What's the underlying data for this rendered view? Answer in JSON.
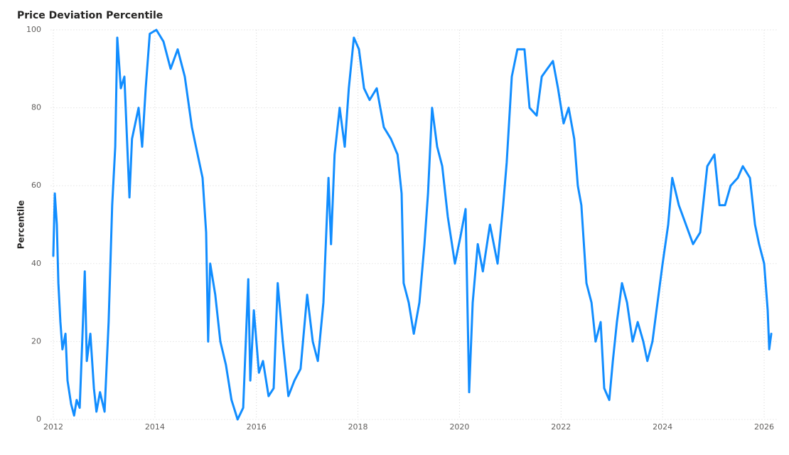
{
  "chart_data": {
    "type": "line",
    "title": "Price Deviation Percentile",
    "y_label": "Percentile",
    "x": [
      2012.0,
      2012.03,
      2012.07,
      2012.1,
      2012.14,
      2012.18,
      2012.24,
      2012.28,
      2012.35,
      2012.41,
      2012.46,
      2012.52,
      2012.57,
      2012.62,
      2012.66,
      2012.73,
      2012.8,
      2012.85,
      2012.92,
      2013.01,
      2013.09,
      2013.16,
      2013.22,
      2013.26,
      2013.33,
      2013.4,
      2013.5,
      2013.55,
      2013.68,
      2013.75,
      2013.82,
      2013.9,
      2014.03,
      2014.17,
      2014.31,
      2014.45,
      2014.59,
      2014.73,
      2014.81,
      2014.94,
      2015.01,
      2015.05,
      2015.09,
      2015.19,
      2015.29,
      2015.4,
      2015.51,
      2015.63,
      2015.74,
      2015.84,
      2015.88,
      2015.95,
      2016.05,
      2016.13,
      2016.24,
      2016.34,
      2016.42,
      2016.52,
      2016.63,
      2016.75,
      2016.87,
      2017.0,
      2017.11,
      2017.21,
      2017.32,
      2017.42,
      2017.47,
      2017.54,
      2017.64,
      2017.74,
      2017.82,
      2017.92,
      2018.02,
      2018.12,
      2018.23,
      2018.37,
      2018.51,
      2018.65,
      2018.78,
      2018.86,
      2018.9,
      2019.0,
      2019.1,
      2019.21,
      2019.31,
      2019.38,
      2019.46,
      2019.56,
      2019.66,
      2019.77,
      2019.91,
      2020.02,
      2020.12,
      2020.19,
      2020.26,
      2020.36,
      2020.46,
      2020.6,
      2020.75,
      2020.86,
      2020.93,
      2021.03,
      2021.14,
      2021.28,
      2021.38,
      2021.52,
      2021.62,
      2021.73,
      2021.84,
      2021.94,
      2022.05,
      2022.15,
      2022.26,
      2022.33,
      2022.4,
      2022.5,
      2022.6,
      2022.68,
      2022.78,
      2022.85,
      2022.95,
      2023.02,
      2023.1,
      2023.2,
      2023.3,
      2023.41,
      2023.51,
      2023.62,
      2023.7,
      2023.8,
      2023.9,
      2024.0,
      2024.11,
      2024.19,
      2024.32,
      2024.46,
      2024.6,
      2024.74,
      2024.88,
      2025.02,
      2025.12,
      2025.23,
      2025.34,
      2025.48,
      2025.58,
      2025.72,
      2025.82,
      2025.9,
      2026.0,
      2026.07,
      2026.1,
      2026.14
    ],
    "series": [
      {
        "name": "Percentile",
        "color": "#118dff",
        "values": [
          42,
          58,
          50,
          35,
          25,
          18,
          22,
          10,
          4,
          1,
          5,
          3,
          20,
          38,
          15,
          22,
          8,
          2,
          7,
          2,
          25,
          55,
          70,
          98,
          85,
          88,
          57,
          72,
          80,
          70,
          85,
          99,
          100,
          97,
          90,
          95,
          88,
          75,
          70,
          62,
          48,
          20,
          40,
          32,
          20,
          14,
          5,
          0,
          3,
          36,
          10,
          28,
          12,
          15,
          6,
          8,
          35,
          20,
          6,
          10,
          13,
          32,
          20,
          15,
          30,
          62,
          45,
          68,
          80,
          70,
          85,
          98,
          95,
          85,
          82,
          85,
          75,
          72,
          68,
          58,
          35,
          30,
          22,
          30,
          45,
          58,
          80,
          70,
          65,
          52,
          40,
          47,
          54,
          7,
          30,
          45,
          38,
          50,
          40,
          55,
          66,
          88,
          95,
          95,
          80,
          78,
          88,
          90,
          92,
          85,
          76,
          80,
          72,
          60,
          55,
          35,
          30,
          20,
          25,
          8,
          5,
          15,
          25,
          35,
          30,
          20,
          25,
          20,
          15,
          20,
          30,
          40,
          50,
          62,
          55,
          50,
          45,
          48,
          65,
          68,
          55,
          55,
          60,
          62,
          65,
          62,
          50,
          45,
          40,
          28,
          18,
          22
        ]
      }
    ],
    "xlim": [
      2011.95,
      2026.25
    ],
    "xticks": [
      2012,
      2014,
      2016,
      2018,
      2020,
      2022,
      2024,
      2026
    ],
    "ylim": [
      0,
      100
    ],
    "yticks": [
      0,
      20,
      40,
      60,
      80,
      100
    ],
    "grid": true
  }
}
